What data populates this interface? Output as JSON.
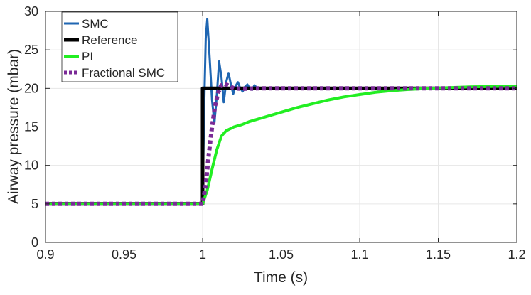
{
  "chart_data": {
    "type": "line",
    "title": "",
    "xlabel": "Time (s)",
    "ylabel": "Airway pressure (mbar)",
    "xlim": [
      0.9,
      1.2
    ],
    "ylim": [
      0,
      30
    ],
    "xticks": [
      0.9,
      0.95,
      1,
      1.05,
      1.1,
      1.15,
      1.2
    ],
    "xtick_labels": [
      "0.9",
      "0.95",
      "1",
      "1.05",
      "1.1",
      "1.15",
      "1.2"
    ],
    "yticks": [
      0,
      5,
      10,
      15,
      20,
      25,
      30
    ],
    "ytick_labels": [
      "0",
      "5",
      "10",
      "15",
      "20",
      "25",
      "30"
    ],
    "grid": true,
    "legend_position": "top-left",
    "series": [
      {
        "name": "SMC",
        "color": "#1f66b2",
        "style": "solid",
        "x": [
          0.9,
          1.0,
          1.001,
          1.002,
          1.003,
          1.0045,
          1.006,
          1.0075,
          1.009,
          1.0105,
          1.012,
          1.0135,
          1.015,
          1.0165,
          1.018,
          1.0195,
          1.021,
          1.0225,
          1.024,
          1.0255,
          1.027,
          1.0285,
          1.03,
          1.0315,
          1.033,
          1.034
        ],
        "y": [
          5,
          5,
          17.5,
          26.5,
          29.0,
          24.0,
          18.5,
          15.5,
          19.0,
          23.5,
          21.5,
          18.2,
          20.8,
          22.0,
          20.5,
          19.3,
          20.3,
          20.8,
          20.0,
          19.6,
          20.2,
          20.5,
          20.0,
          19.8,
          20.4,
          20.2
        ]
      },
      {
        "name": "Reference",
        "color": "#000000",
        "style": "solid",
        "x": [
          0.9,
          1.0,
          1.0,
          1.2
        ],
        "y": [
          5,
          5,
          20,
          20
        ]
      },
      {
        "name": "PI",
        "color": "#22ee22",
        "style": "solid",
        "x": [
          0.9,
          1.0,
          1.003,
          1.006,
          1.009,
          1.012,
          1.015,
          1.02,
          1.025,
          1.03,
          1.04,
          1.05,
          1.06,
          1.07,
          1.08,
          1.09,
          1.1,
          1.11,
          1.12,
          1.13,
          1.14,
          1.15,
          1.17,
          1.2
        ],
        "y": [
          5,
          5,
          6.8,
          9.5,
          12.0,
          13.8,
          14.5,
          15.0,
          15.3,
          15.7,
          16.3,
          16.9,
          17.5,
          18.0,
          18.5,
          18.9,
          19.2,
          19.5,
          19.7,
          19.85,
          19.95,
          20.05,
          20.2,
          20.3
        ]
      },
      {
        "name": "Fractional SMC",
        "color": "#7a2a96",
        "style": "dotted",
        "x": [
          0.9,
          1.0,
          1.002,
          1.004,
          1.006,
          1.008,
          1.01,
          1.012,
          1.014,
          1.017,
          1.02,
          1.025,
          1.035,
          1.2
        ],
        "y": [
          5,
          5,
          7.5,
          11.5,
          15.0,
          17.8,
          19.5,
          20.4,
          20.6,
          20.3,
          20.0,
          19.95,
          20.0,
          20.0
        ]
      }
    ]
  }
}
